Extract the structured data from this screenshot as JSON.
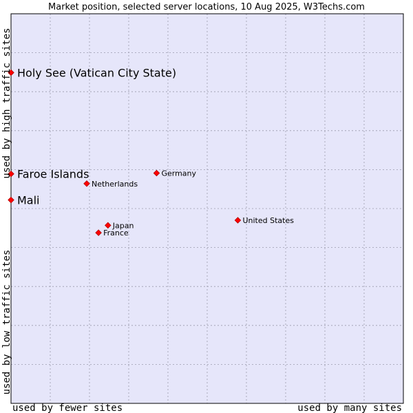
{
  "chart_data": {
    "type": "scatter",
    "title": "Market position, selected server locations, 10 Aug 2025, W3Techs.com",
    "xlabel_left": "used by fewer sites",
    "xlabel_right": "used by many sites",
    "ylabel_bottom": "used by low traffic sites",
    "ylabel_top": "used by high traffic sites",
    "xlim": [
      0,
      100
    ],
    "ylim": [
      0,
      100
    ],
    "grid": true,
    "colors": {
      "plot_bg": "#e6e6fa",
      "grid": "#9a9aac",
      "marker": "#ff0000",
      "marker_edge": "#b00000",
      "text": "#000000"
    },
    "points": [
      {
        "name": "Holy See (Vatican City State)",
        "x": 0.0,
        "y": 84.9,
        "emphasis": true
      },
      {
        "name": "Faroe Islands",
        "x": 0.0,
        "y": 58.9,
        "emphasis": true
      },
      {
        "name": "Mali",
        "x": 0.0,
        "y": 52.2,
        "emphasis": true
      },
      {
        "name": "Germany",
        "x": 37.1,
        "y": 59.1,
        "emphasis": false
      },
      {
        "name": "Netherlands",
        "x": 19.3,
        "y": 56.4,
        "emphasis": false
      },
      {
        "name": "United States",
        "x": 57.8,
        "y": 47.0,
        "emphasis": false
      },
      {
        "name": "Japan",
        "x": 24.7,
        "y": 45.7,
        "emphasis": false
      },
      {
        "name": "France",
        "x": 22.3,
        "y": 43.8,
        "emphasis": false
      }
    ]
  }
}
